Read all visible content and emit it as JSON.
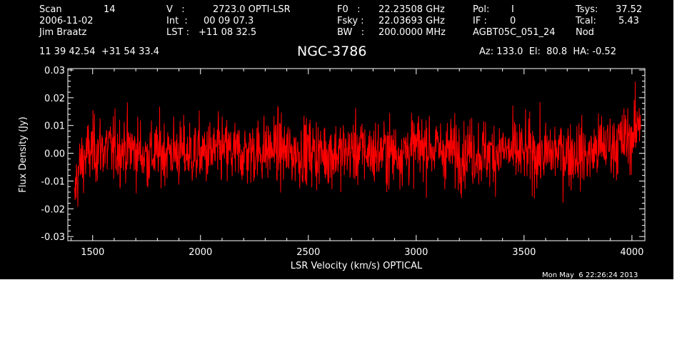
{
  "header": {
    "row1": {
      "scan_label": "Scan",
      "scan_value": "14",
      "v_label": "V   :",
      "v_value": "2723.0 OPTI-LSR",
      "f0_label": "F0   :",
      "f0_value": "22.23508 GHz",
      "pol_label": "Pol:",
      "pol_value": "I",
      "tsys_label": "Tsys:",
      "tsys_value": "37.52"
    },
    "row2": {
      "date": "2006-11-02",
      "int_label": "Int  :",
      "int_value": "00 09 07.3",
      "fsky_label": "Fsky :",
      "fsky_value": "22.03693 GHz",
      "if_label": "IF :",
      "if_value": "0",
      "tcal_label": "Tcal:",
      "tcal_value": "5.43"
    },
    "row3": {
      "observer": "Jim Braatz",
      "lst_label": "LST :",
      "lst_value": "+11 08 32.5",
      "bw_label": "BW   :",
      "bw_value": "200.0000 MHz",
      "project": "AGBT05C_051_24",
      "mode": "Nod"
    },
    "coords": "11 39 42.54  +31 54 33.4",
    "source": "NGC-3786",
    "az_el_ha": "Az: 133.0  El:  80.8  HA: -0.52"
  },
  "footer": {
    "timestamp": "Mon May  6 22:26:24 2013"
  },
  "colors": {
    "background": "#000000",
    "axes": "#ffffff",
    "trace": "#ff0000"
  },
  "chart_data": {
    "type": "line",
    "title": "NGC-3786",
    "xlabel": "LSR Velocity (km/s) OPTICAL",
    "ylabel": "Flux Density (Jy)",
    "xlim": [
      1385,
      4060
    ],
    "ylim": [
      -0.0315,
      0.0305
    ],
    "xticks": [
      1500,
      2000,
      2500,
      3000,
      3500,
      4000
    ],
    "xtick_labels": [
      "1500",
      "2000",
      "2500",
      "3000",
      "3500",
      "4000"
    ],
    "yticks": [
      -0.03,
      -0.02,
      -0.01,
      0.0,
      0.01,
      0.02,
      0.03
    ],
    "ytick_labels": [
      "-0.03",
      "-0.02",
      "-0.01",
      "0.00",
      "0.01",
      "0.02",
      "0.03"
    ],
    "grid": false,
    "series": [
      {
        "x": [
          1415,
          1420,
          1430,
          1445,
          1460,
          1480,
          1500,
          1550,
          1600,
          1650,
          1700,
          1750,
          1800,
          1850,
          1900,
          1950,
          2000,
          2050,
          2100,
          2150,
          2200,
          2250,
          2300,
          2350,
          2400,
          2450,
          2500,
          2550,
          2600,
          2650,
          2700,
          2750,
          2800,
          2850,
          2900,
          2950,
          3000,
          3050,
          3100,
          3150,
          3200,
          3250,
          3300,
          3350,
          3400,
          3450,
          3500,
          3550,
          3600,
          3650,
          3700,
          3750,
          3800,
          3850,
          3900,
          3950,
          4000,
          4020,
          4030,
          4040
        ],
        "y": [
          -0.021,
          -0.012,
          -0.008,
          -0.004,
          -0.002,
          0.0,
          0.001,
          0.002,
          0.001,
          0.002,
          0.001,
          -0.001,
          0.0,
          0.001,
          0.0,
          0.0,
          0.0,
          0.0,
          0.001,
          0.0,
          0.0,
          0.001,
          0.001,
          0.002,
          0.0,
          0.0,
          0.001,
          0.0,
          0.0,
          0.0,
          0.001,
          0.001,
          0.0,
          0.001,
          0.0,
          0.001,
          0.002,
          0.003,
          0.001,
          0.001,
          0.0,
          0.001,
          0.0,
          0.0,
          0.001,
          0.0,
          0.0,
          0.0,
          -0.001,
          0.001,
          0.0,
          0.0,
          -0.001,
          0.002,
          0.003,
          0.004,
          0.006,
          0.008,
          0.012,
          0.014
        ],
        "noise_rms": 0.006
      }
    ]
  }
}
